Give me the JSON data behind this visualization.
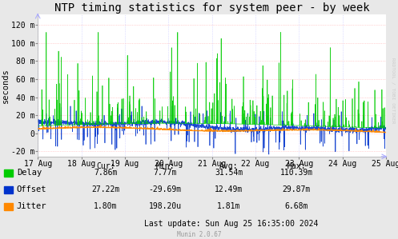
{
  "title": "NTP timing statistics for system peer - by week",
  "ylabel": "seconds",
  "background_color": "#e8e8e8",
  "plot_bg_color": "#ffffff",
  "grid_color": "#ff9999",
  "grid_color2": "#aaaaff",
  "x_labels": [
    "17 Aug",
    "18 Aug",
    "19 Aug",
    "20 Aug",
    "21 Aug",
    "22 Aug",
    "23 Aug",
    "24 Aug",
    "25 Aug"
  ],
  "y_ticks": [
    -20,
    0,
    20,
    40,
    60,
    80,
    100,
    120
  ],
  "y_tick_labels": [
    "-20 m",
    "0",
    "20 m",
    "40 m",
    "60 m",
    "80 m",
    "100 m",
    "120 m"
  ],
  "ylim": [
    -26,
    132
  ],
  "xlim": [
    0,
    8
  ],
  "delay_color": "#00cc00",
  "offset_color": "#0033cc",
  "jitter_color": "#ff8800",
  "legend_items": [
    {
      "label": "Delay",
      "color": "#00cc00"
    },
    {
      "label": "Offset",
      "color": "#0033cc"
    },
    {
      "label": "Jitter",
      "color": "#ff8800"
    }
  ],
  "stats_headers": [
    "Cur:",
    "Min:",
    "Avg:",
    "Max:"
  ],
  "stats_rows": [
    {
      "name": "Delay",
      "cur": "7.86m",
      "min": "7.77m",
      "avg": "31.54m",
      "max": "110.39m"
    },
    {
      "name": "Offset",
      "cur": "27.22m",
      "min": "-29.69m",
      "avg": "12.49m",
      "max": "29.87m"
    },
    {
      "name": "Jitter",
      "cur": "1.80m",
      "min": "198.20u",
      "avg": "1.81m",
      "max": "6.68m"
    }
  ],
  "last_update": "Last update: Sun Aug 25 16:35:00 2024",
  "munin_version": "Munin 2.0.67",
  "rrdtool_label": "RRDTOOL / TOBI OETIKER",
  "title_fontsize": 10,
  "axis_fontsize": 7,
  "legend_fontsize": 7.5,
  "stats_fontsize": 7
}
